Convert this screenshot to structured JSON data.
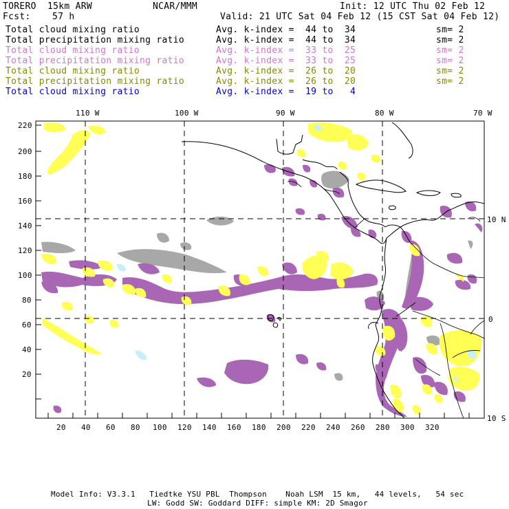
{
  "header": {
    "model": "TORERO  15km ARW",
    "org": "NCAR/MMM",
    "init": "Init: 12 UTC Thu 02 Feb 12",
    "fcst_label": "Fcst:",
    "fcst_value": "57 h",
    "valid": "Valid: 21 UTC Sat 04 Feb 12 (15 CST Sat 04 Feb 12)"
  },
  "legend_rows": [
    {
      "field": "Total cloud mixing ratio",
      "kindex": "Avg. k-index =  44 to  34",
      "sm": "sm= 2",
      "color": "#000000"
    },
    {
      "field": "Total precipitation mixing ratio",
      "kindex": "Avg. k-index =  44 to  34",
      "sm": "sm= 2",
      "color": "#000000"
    },
    {
      "field": "Total cloud mixing ratio",
      "kindex": "Avg. k-index =  33 to  25",
      "sm": "sm= 2",
      "color": "#cc77cc"
    },
    {
      "field": "Total precipitation mixing ratio",
      "kindex": "Avg. k-index =  33 to  25",
      "sm": "sm= 2",
      "color": "#cc77cc"
    },
    {
      "field": "Total cloud mixing ratio",
      "kindex": "Avg. k-index =  26 to  20",
      "sm": "sm= 2",
      "color": "#888800"
    },
    {
      "field": "Total precipitation mixing ratio",
      "kindex": "Avg. k-index =  26 to  20",
      "sm": "sm= 2",
      "color": "#888800"
    },
    {
      "field": "Total cloud mixing ratio",
      "kindex": "Avg. k-index =  19 to   4",
      "sm": "",
      "color": "#0000cc"
    }
  ],
  "map": {
    "lon_labels": [
      "110 W",
      "100 W",
      "90 W",
      "80 W",
      "70 W"
    ],
    "lat_labels": [
      "10 N",
      "0",
      "10 S"
    ],
    "y_ticks": [
      "220",
      "200",
      "180",
      "160",
      "140",
      "120",
      "100",
      "80",
      "60",
      "40",
      "20"
    ],
    "x_ticks": [
      "20",
      "40",
      "60",
      "80",
      "100",
      "120",
      "140",
      "160",
      "180",
      "200",
      "220",
      "240",
      "260",
      "280",
      "300",
      "320"
    ],
    "colors": {
      "purple": "#a866b4",
      "yellow": "#ffff55",
      "gray": "#a8a8a8",
      "lightblue": "#c8f0f8",
      "coast": "#000000"
    }
  },
  "footer": {
    "line1": "Model Info: V3.3.1   Tiedtke YSU PBL  Thompson    Noah LSM  15 km,   44 levels,   54 sec",
    "line2": "LW: Godd SW: Goddard DIFF: simple KM: 2D Smagor"
  }
}
